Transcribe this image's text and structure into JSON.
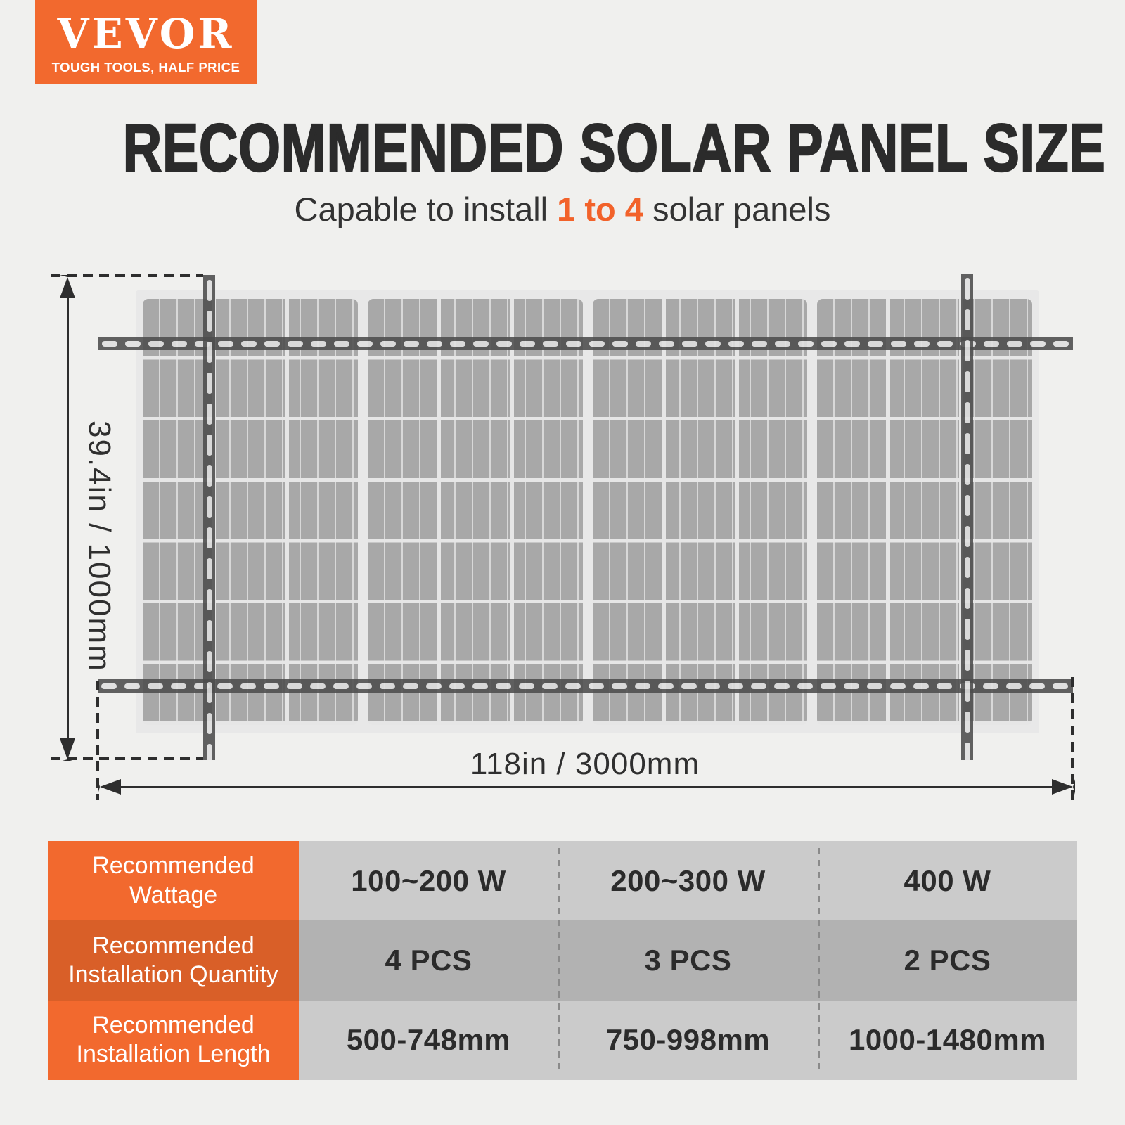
{
  "brand": {
    "name": "VEVOR",
    "tagline": "TOUGH TOOLS, HALF PRICE"
  },
  "header": {
    "title": "RECOMMENDED SOLAR PANEL SIZE",
    "subtitle_prefix": "Capable to install ",
    "subtitle_highlight": "1 to 4",
    "subtitle_suffix": " solar panels"
  },
  "diagram": {
    "height_label": "39.4in / 1000mm",
    "width_label": "118in / 3000mm",
    "panel_count": 4
  },
  "table": {
    "rows": [
      {
        "label_line1": "Recommended",
        "label_line2": "Wattage",
        "values": [
          "100~200 W",
          "200~300 W",
          "400 W"
        ]
      },
      {
        "label_line1": "Recommended",
        "label_line2": "Installation Quantity",
        "values": [
          "4 PCS",
          "3 PCS",
          "2 PCS"
        ]
      },
      {
        "label_line1": "Recommended",
        "label_line2": "Installation Length",
        "values": [
          "500-748mm",
          "750-998mm",
          "1000-1480mm"
        ]
      }
    ]
  },
  "colors": {
    "brand_orange": "#f2692e",
    "brand_orange_dark": "#d95f28",
    "highlight_orange": "#f2622a",
    "title_dark": "#2b2b2b",
    "row_value_light": "#cbcbcb",
    "row_value_dark": "#b2b2b2",
    "rail_gray": "#4d4d4d",
    "cell_gray": "#a8a8a8"
  }
}
